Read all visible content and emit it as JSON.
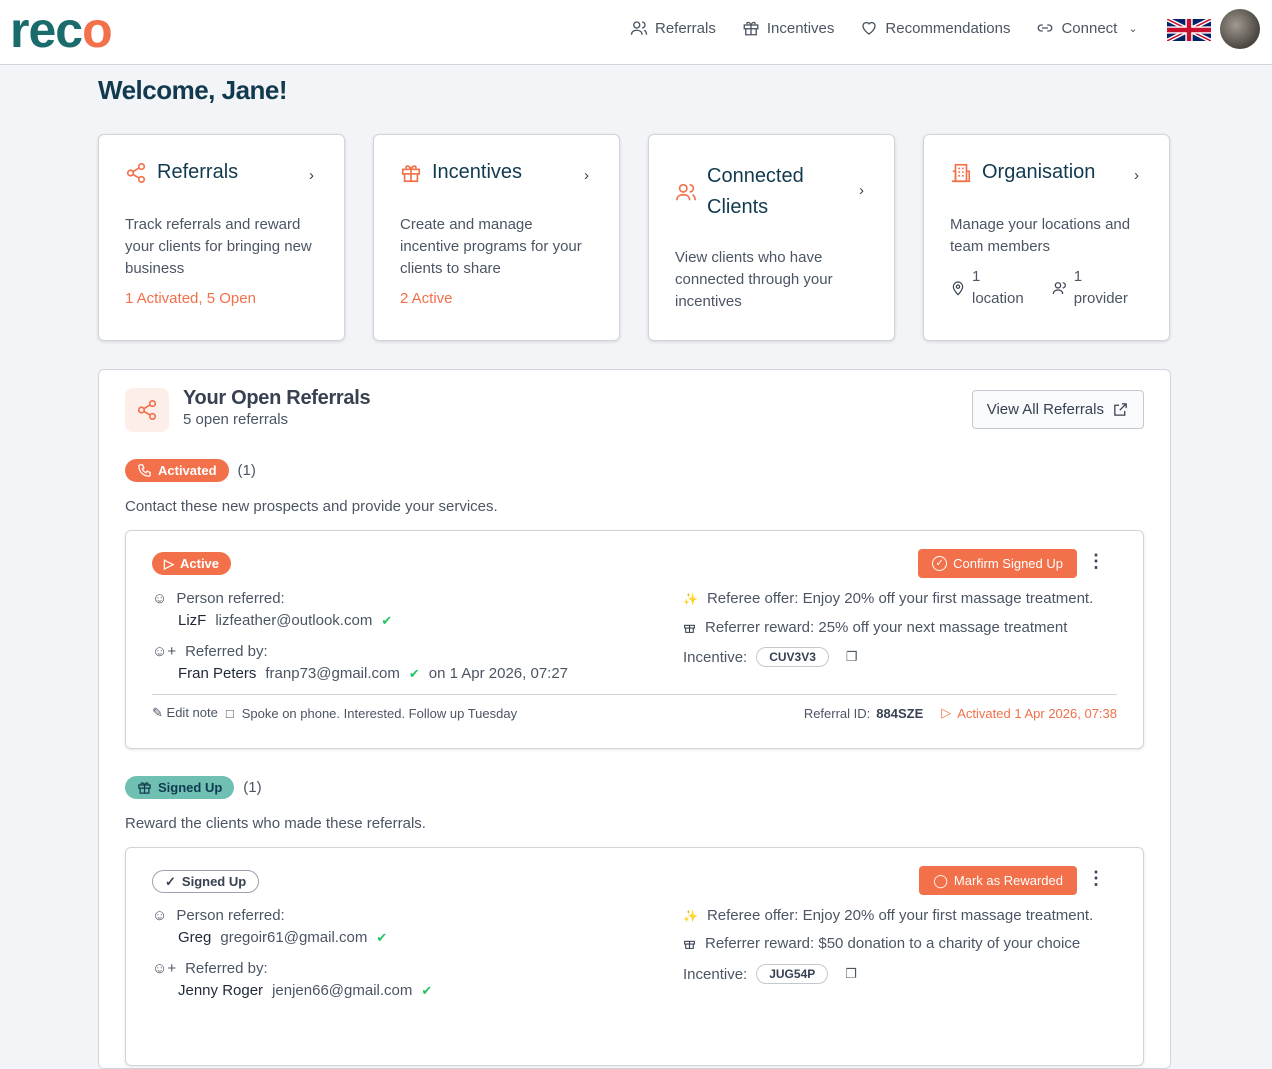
{
  "brand": {
    "logo": "reco",
    "accent": "#f2704a",
    "teal": "#1a6b6b"
  },
  "nav": {
    "items": [
      {
        "label": "Referrals",
        "icon": "users-icon"
      },
      {
        "label": "Incentives",
        "icon": "gift-icon"
      },
      {
        "label": "Recommendations",
        "icon": "heart-icon"
      },
      {
        "label": "Connect",
        "icon": "link-icon"
      }
    ]
  },
  "welcome": "Welcome, Jane!",
  "cards": [
    {
      "title": "Referrals",
      "desc": "Track referrals and reward your clients for bringing new business",
      "status": "1 Activated, 5 Open"
    },
    {
      "title": "Incentives",
      "desc": "Create and manage incentive programs for your clients to share",
      "status": "2 Active"
    },
    {
      "title": "Connected Clients",
      "desc": "View clients who have connected through your incentives"
    },
    {
      "title": "Organisation",
      "desc": "Manage your locations and team members",
      "locations": "1",
      "locations_label": "location",
      "providers": "1",
      "providers_label": "provider"
    }
  ],
  "open": {
    "title": "Your Open Referrals",
    "subtitle": "5 open referrals",
    "view_all": "View All Referrals",
    "groups": [
      {
        "label": "Activated",
        "count": "(1)",
        "desc": "Contact these new prospects and provide your services.",
        "color": "#f2704a",
        "referral": {
          "status": "Active",
          "action": "Confirm Signed Up",
          "person_label": "Person referred:",
          "person_name": "LizF",
          "person_email": "lizfeather@outlook.com",
          "by_label": "Referred by:",
          "by_name": "Fran Peters",
          "by_email": "franp73@gmail.com",
          "by_date": "on 1 Apr 2026, 07:27",
          "offer": "Referee offer: Enjoy 20% off your first massage treatment.",
          "reward": "Referrer reward: 25% off your next massage treatment",
          "incentive_label": "Incentive:",
          "incentive": "CUV3V3",
          "edit_note": "Edit note",
          "note": "Spoke on phone. Interested. Follow up Tuesday",
          "id_label": "Referral ID:",
          "id": "884SZE",
          "activated": "Activated 1 Apr 2026, 07:38"
        }
      },
      {
        "label": "Signed Up",
        "count": "(1)",
        "desc": "Reward the clients who made these referrals.",
        "color": "#6fbfb3",
        "referral": {
          "status": "Signed Up",
          "action": "Mark as Rewarded",
          "person_label": "Person referred:",
          "person_name": "Greg",
          "person_email": "gregoir61@gmail.com",
          "by_label": "Referred by:",
          "by_name": "Jenny Roger",
          "by_email": "jenjen66@gmail.com",
          "offer": "Referee offer: Enjoy 20% off your first massage treatment.",
          "reward": "Referrer reward: $50 donation to a charity of your choice",
          "incentive_label": "Incentive:",
          "incentive": "JUG54P"
        }
      }
    ]
  }
}
